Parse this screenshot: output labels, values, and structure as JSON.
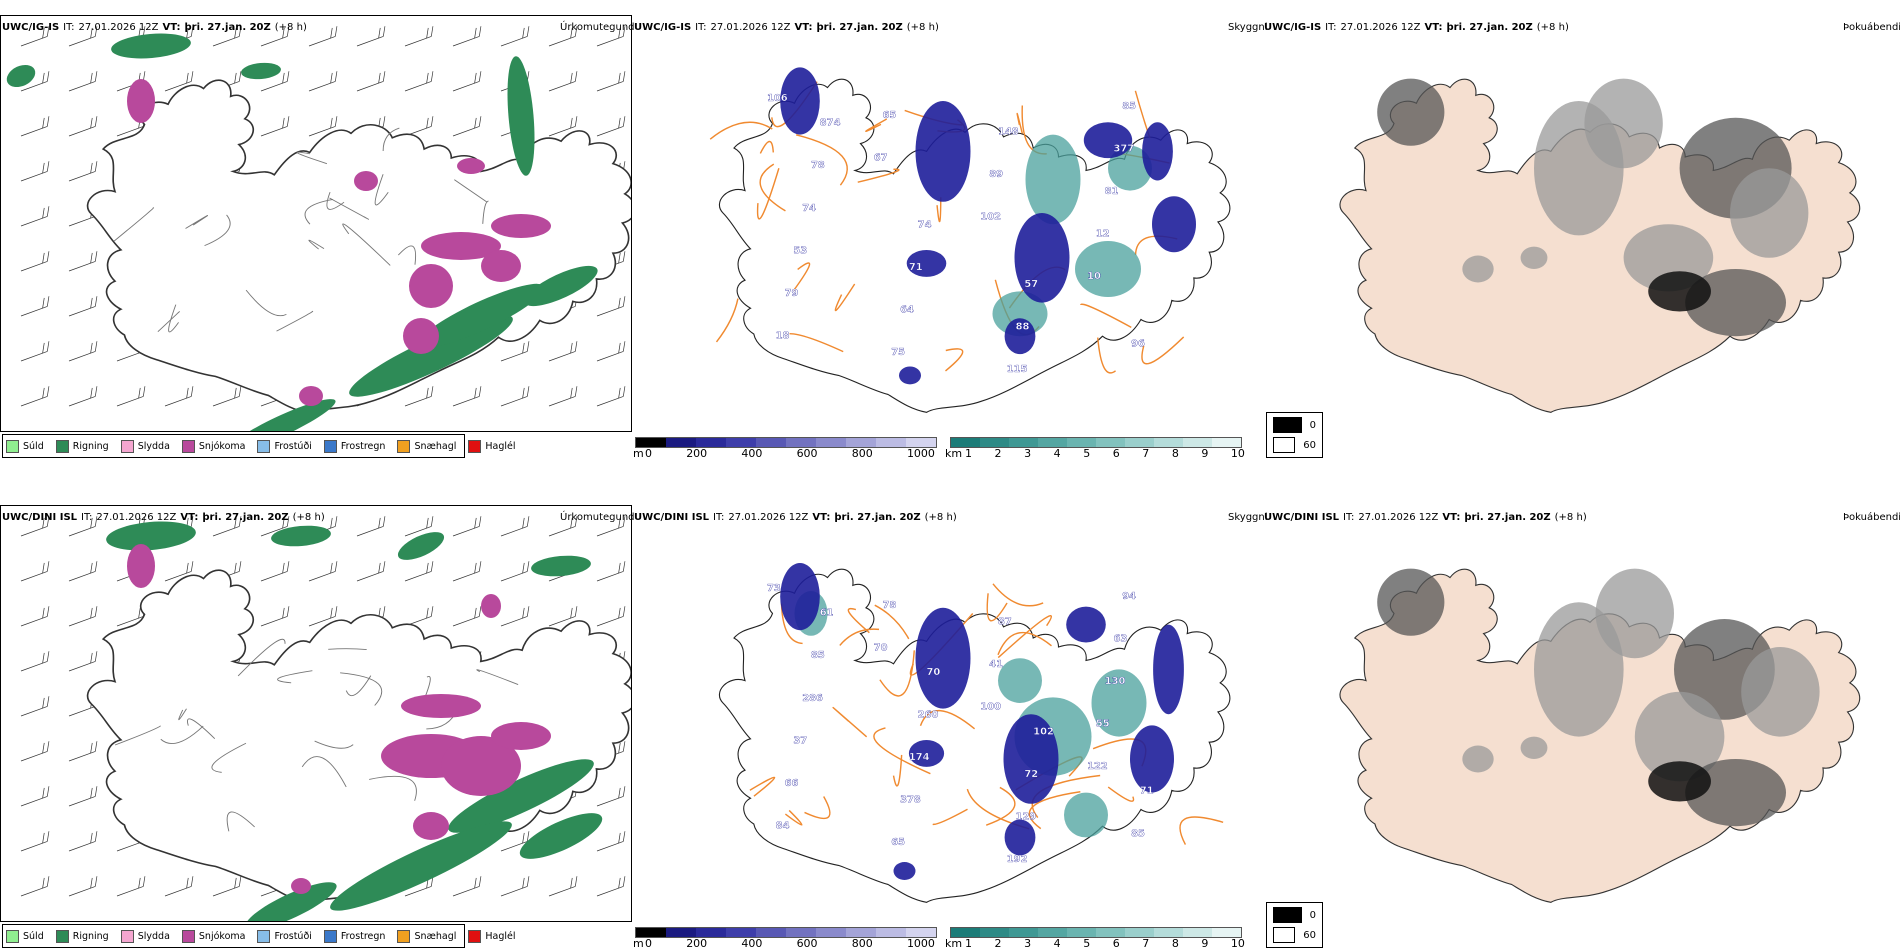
{
  "rows": [
    {
      "precip": {
        "model": "UWC/IG-IS",
        "it_label": "IT:",
        "it_value": "27.01.2026 12Z",
        "vt_label": "VT:",
        "vt_value": "þri. 27.jan. 20Z",
        "lead": "(+8 h)",
        "title": "Úrkomutegund"
      },
      "visibility": {
        "model": "UWC/IG-IS",
        "it_label": "IT:",
        "it_value": "27.01.2026 12Z",
        "vt_label": "VT:",
        "vt_value": "þri. 27.jan. 20Z",
        "lead": "(+8 h)",
        "title": "Skyggni",
        "numbers": [
          "106",
          "67",
          "102",
          "10",
          "18",
          "65",
          "89",
          "12",
          "79",
          "75",
          "148",
          "81",
          "53",
          "64",
          "115",
          "377",
          "74",
          "71",
          "88",
          "85",
          "78",
          "74",
          "57",
          "96",
          "874"
        ]
      },
      "fog": {
        "model": "UWC/IG-IS",
        "it_label": "IT:",
        "it_value": "27.01.2026 12Z",
        "vt_label": "VT:",
        "vt_value": "þri. 27.jan. 20Z",
        "lead": "(+8 h)",
        "title": "Þokuábendi"
      }
    },
    {
      "precip": {
        "model": "UWC/DINI ISL",
        "it_label": "IT:",
        "it_value": "27.01.2026 12Z",
        "vt_label": "VT:",
        "vt_value": "þri. 27.jan. 20Z",
        "lead": "(+8 h)",
        "title": "Úrkomutegund"
      },
      "visibility": {
        "model": "UWC/DINI ISL",
        "it_label": "IT:",
        "it_value": "27.01.2026 12Z",
        "vt_label": "VT:",
        "vt_value": "þri. 27.jan. 20Z",
        "lead": "(+8 h)",
        "title": "Skyggni",
        "numbers": [
          "73",
          "70",
          "100",
          "122",
          "84",
          "78",
          "41",
          "55",
          "66",
          "65",
          "87",
          "130",
          "37",
          "378",
          "192",
          "63",
          "286",
          "174",
          "129",
          "94",
          "85",
          "260",
          "72",
          "85",
          "61",
          "70",
          "102",
          "71"
        ]
      },
      "fog": {
        "model": "UWC/DINI ISL",
        "it_label": "IT:",
        "it_value": "27.01.2026 12Z",
        "vt_label": "VT:",
        "vt_value": "þri. 27.jan. 20Z",
        "lead": "(+8 h)",
        "title": "Þokuábendi"
      }
    }
  ],
  "precip_legend": [
    {
      "label": "Súld",
      "color": "#90ee90"
    },
    {
      "label": "Rigning",
      "color": "#2e8b57"
    },
    {
      "label": "Slydda",
      "color": "#f4a6d0"
    },
    {
      "label": "Snjókoma",
      "color": "#b8499c"
    },
    {
      "label": "Frostúði",
      "color": "#87bde8"
    },
    {
      "label": "Frostregn",
      "color": "#3a78c9"
    },
    {
      "label": "Snæhagl",
      "color": "#f0a020"
    },
    {
      "label": "Haglél",
      "color": "#e01010"
    }
  ],
  "elevation_bar": {
    "unit": "m",
    "ticks": [
      "0",
      "200",
      "400",
      "600",
      "800",
      "1000"
    ],
    "colors": [
      "#000000",
      "#1a1a80",
      "#2a2a9a",
      "#3e3eaa",
      "#5858b4",
      "#7272c0",
      "#8a8acc",
      "#a4a4d8",
      "#bcbce4",
      "#d4d4ef"
    ]
  },
  "km_bar": {
    "unit": "km",
    "ticks": [
      "1",
      "2",
      "3",
      "4",
      "5",
      "6",
      "7",
      "8",
      "9",
      "10"
    ],
    "colors": [
      "#1c7c78",
      "#2e8a86",
      "#3f9894",
      "#54a6a2",
      "#6ab4b0",
      "#82c2be",
      "#9acfcc",
      "#b4dcda",
      "#cde8e6",
      "#e6f4f3"
    ]
  },
  "fog_legend": [
    {
      "label": "0",
      "color": "#000000"
    },
    {
      "label": "60",
      "color": "#ffffff"
    }
  ]
}
